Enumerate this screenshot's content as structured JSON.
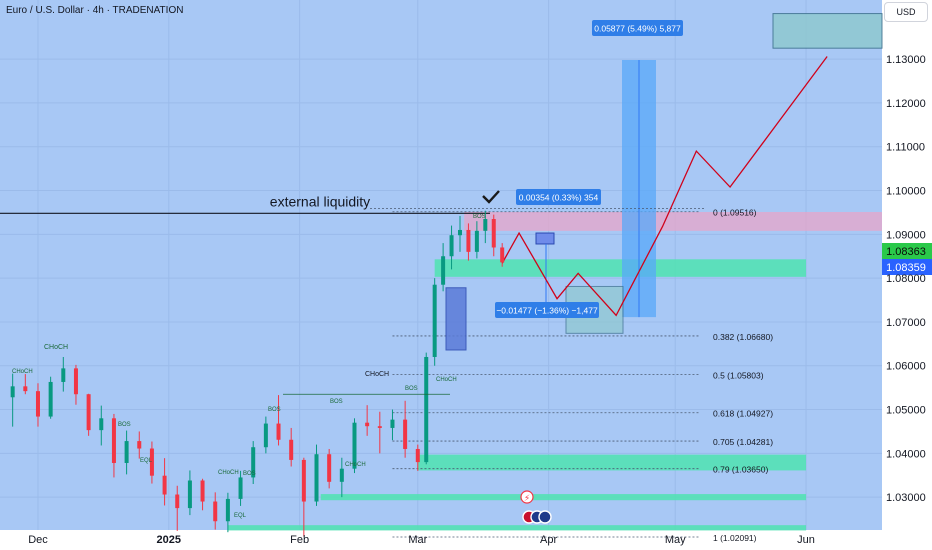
{
  "header": {
    "title": "Euro / U.S. Dollar · 4h · TRADENATION",
    "currency": "USD"
  },
  "colors": {
    "background": "#a8c8f5",
    "up": "#089981",
    "down": "#f23645",
    "zone": "#4fe3b0",
    "pink": "#e8a6c8",
    "path": "#d0021b",
    "long": "#58a8f8",
    "badge_green": "#2ac94a",
    "badge_blue": "#2962ff"
  },
  "chart_data": {
    "type": "candlestick",
    "title": "Euro / U.S. Dollar · 4h · TRADENATION",
    "ylim": [
      1.0225,
      1.1435
    ],
    "yticks": [
      1.03,
      1.04,
      1.05,
      1.06,
      1.07,
      1.08,
      1.09,
      1.1,
      1.11,
      1.12,
      1.13
    ],
    "ytick_labels": [
      "1.03000",
      "1.04000",
      "1.05000",
      "1.06000",
      "1.07000",
      "1.08000",
      "1.09000",
      "1.10000",
      "1.11000",
      "1.12000",
      "1.13000"
    ],
    "xticks": [
      {
        "label": "Dec",
        "date": "2024-12-01"
      },
      {
        "label": "2025",
        "date": "2025-01-01"
      },
      {
        "label": "Feb",
        "date": "2025-02-01"
      },
      {
        "label": "Mar",
        "date": "2025-03-01"
      },
      {
        "label": "Apr",
        "date": "2025-04-01"
      },
      {
        "label": "May",
        "date": "2025-05-01"
      },
      {
        "label": "Jun",
        "date": "2025-06-01"
      }
    ],
    "price_badges": [
      {
        "value": "1.08363",
        "kind": "green"
      },
      {
        "value": "1.08359",
        "kind": "blue"
      }
    ],
    "fib_levels": [
      {
        "label": "0 (1.09516)",
        "price": 1.09516
      },
      {
        "label": "0.382 (1.06680)",
        "price": 1.0668
      },
      {
        "label": "0.5 (1.05803)",
        "price": 1.05803
      },
      {
        "label": "0.618 (1.04927)",
        "price": 1.04927
      },
      {
        "label": "0.705 (1.04281)",
        "price": 1.04281
      },
      {
        "label": "0.79 (1.03650)",
        "price": 1.0365
      },
      {
        "label": "1 (1.02091)",
        "price": 1.02091
      }
    ],
    "annotations": {
      "liquidity": "external liquidity"
    },
    "measure_labels": {
      "top": "0.05877 (5.49%) 5,877",
      "small": "0.00354 (0.33%) 354",
      "down": "−0.01477 (−1.36%) −1,477"
    },
    "structure_labels": [
      "CHoCH",
      "CHoCH",
      "CHoCH",
      "CHoCH",
      "CHoCH",
      "CHoCH",
      "BOS",
      "BOS",
      "BOS",
      "BOS",
      "BOS",
      "BOS",
      "EQL",
      "EQL"
    ],
    "zones": [
      {
        "from": "2025-03-05",
        "to": "2025-06-01",
        "low": 1.0803,
        "high": 1.0843
      },
      {
        "from": "2025-03-01",
        "to": "2025-06-01",
        "low": 1.0361,
        "high": 1.0397
      },
      {
        "from": "2025-02-06",
        "to": "2025-06-01",
        "low": 1.0293,
        "high": 1.0307
      },
      {
        "from": "2025-01-15",
        "to": "2025-06-01",
        "low": 1.0224,
        "high": 1.0236
      }
    ],
    "candles": [
      [
        "2024-11-25",
        1.0528,
        1.0582,
        1.0461,
        1.0553
      ],
      [
        "2024-11-28",
        1.0553,
        1.0581,
        1.0535,
        1.0542
      ],
      [
        "2024-12-01",
        1.0542,
        1.056,
        1.0461,
        1.0484
      ],
      [
        "2024-12-04",
        1.0484,
        1.0575,
        1.0479,
        1.0563
      ],
      [
        "2024-12-07",
        1.0563,
        1.062,
        1.0541,
        1.0594
      ],
      [
        "2024-12-10",
        1.0594,
        1.0602,
        1.0511,
        1.0535
      ],
      [
        "2024-12-13",
        1.0535,
        1.0536,
        1.044,
        1.0453
      ],
      [
        "2024-12-16",
        1.0453,
        1.0509,
        1.0418,
        1.048
      ],
      [
        "2024-12-19",
        1.048,
        1.049,
        1.0345,
        1.0378
      ],
      [
        "2024-12-22",
        1.0378,
        1.0452,
        1.0352,
        1.0428
      ],
      [
        "2024-12-25",
        1.0428,
        1.045,
        1.0388,
        1.0411
      ],
      [
        "2024-12-28",
        1.0411,
        1.0427,
        1.0331,
        1.0349
      ],
      [
        "2024-12-31",
        1.0349,
        1.0389,
        1.0281,
        1.0306
      ],
      [
        "2025-01-03",
        1.0306,
        1.0326,
        1.0223,
        1.0275
      ],
      [
        "2025-01-06",
        1.0275,
        1.0361,
        1.0259,
        1.0338
      ],
      [
        "2025-01-09",
        1.0338,
        1.0342,
        1.027,
        1.029
      ],
      [
        "2025-01-12",
        1.029,
        1.0311,
        1.0226,
        1.0245
      ],
      [
        "2025-01-15",
        1.0245,
        1.031,
        1.022,
        1.0296
      ],
      [
        "2025-01-18",
        1.0296,
        1.036,
        1.028,
        1.0345
      ],
      [
        "2025-01-21",
        1.0345,
        1.0428,
        1.033,
        1.0414
      ],
      [
        "2025-01-24",
        1.0414,
        1.0484,
        1.04,
        1.0468
      ],
      [
        "2025-01-27",
        1.0468,
        1.0533,
        1.0418,
        1.0431
      ],
      [
        "2025-01-30",
        1.0431,
        1.0458,
        1.037,
        1.0385
      ],
      [
        "2025-02-02",
        1.0385,
        1.039,
        1.021,
        1.029
      ],
      [
        "2025-02-05",
        1.029,
        1.042,
        1.028,
        1.0398
      ],
      [
        "2025-02-08",
        1.0398,
        1.041,
        1.032,
        1.0335
      ],
      [
        "2025-02-11",
        1.0335,
        1.039,
        1.03,
        1.0365
      ],
      [
        "2025-02-14",
        1.0365,
        1.048,
        1.0355,
        1.047
      ],
      [
        "2025-02-17",
        1.047,
        1.051,
        1.044,
        1.0462
      ],
      [
        "2025-02-20",
        1.0462,
        1.0495,
        1.04,
        1.0458
      ],
      [
        "2025-02-23",
        1.0458,
        1.05,
        1.043,
        1.0477
      ],
      [
        "2025-02-26",
        1.0477,
        1.052,
        1.039,
        1.041
      ],
      [
        "2025-03-01",
        1.041,
        1.042,
        1.036,
        1.038
      ],
      [
        "2025-03-03",
        1.038,
        1.063,
        1.0375,
        1.062
      ],
      [
        "2025-03-05",
        1.062,
        1.08,
        1.06,
        1.0785
      ],
      [
        "2025-03-07",
        1.0785,
        1.088,
        1.077,
        1.085
      ],
      [
        "2025-03-09",
        1.085,
        1.092,
        1.082,
        1.0898
      ],
      [
        "2025-03-11",
        1.0898,
        1.0942,
        1.086,
        1.091
      ],
      [
        "2025-03-13",
        1.091,
        1.0925,
        1.084,
        1.086
      ],
      [
        "2025-03-15",
        1.086,
        1.093,
        1.0845,
        1.0908
      ],
      [
        "2025-03-17",
        1.0908,
        1.0954,
        1.088,
        1.0935
      ],
      [
        "2025-03-19",
        1.0935,
        1.0945,
        1.085,
        1.087
      ],
      [
        "2025-03-21",
        1.087,
        1.088,
        1.0826,
        1.0836
      ]
    ]
  }
}
